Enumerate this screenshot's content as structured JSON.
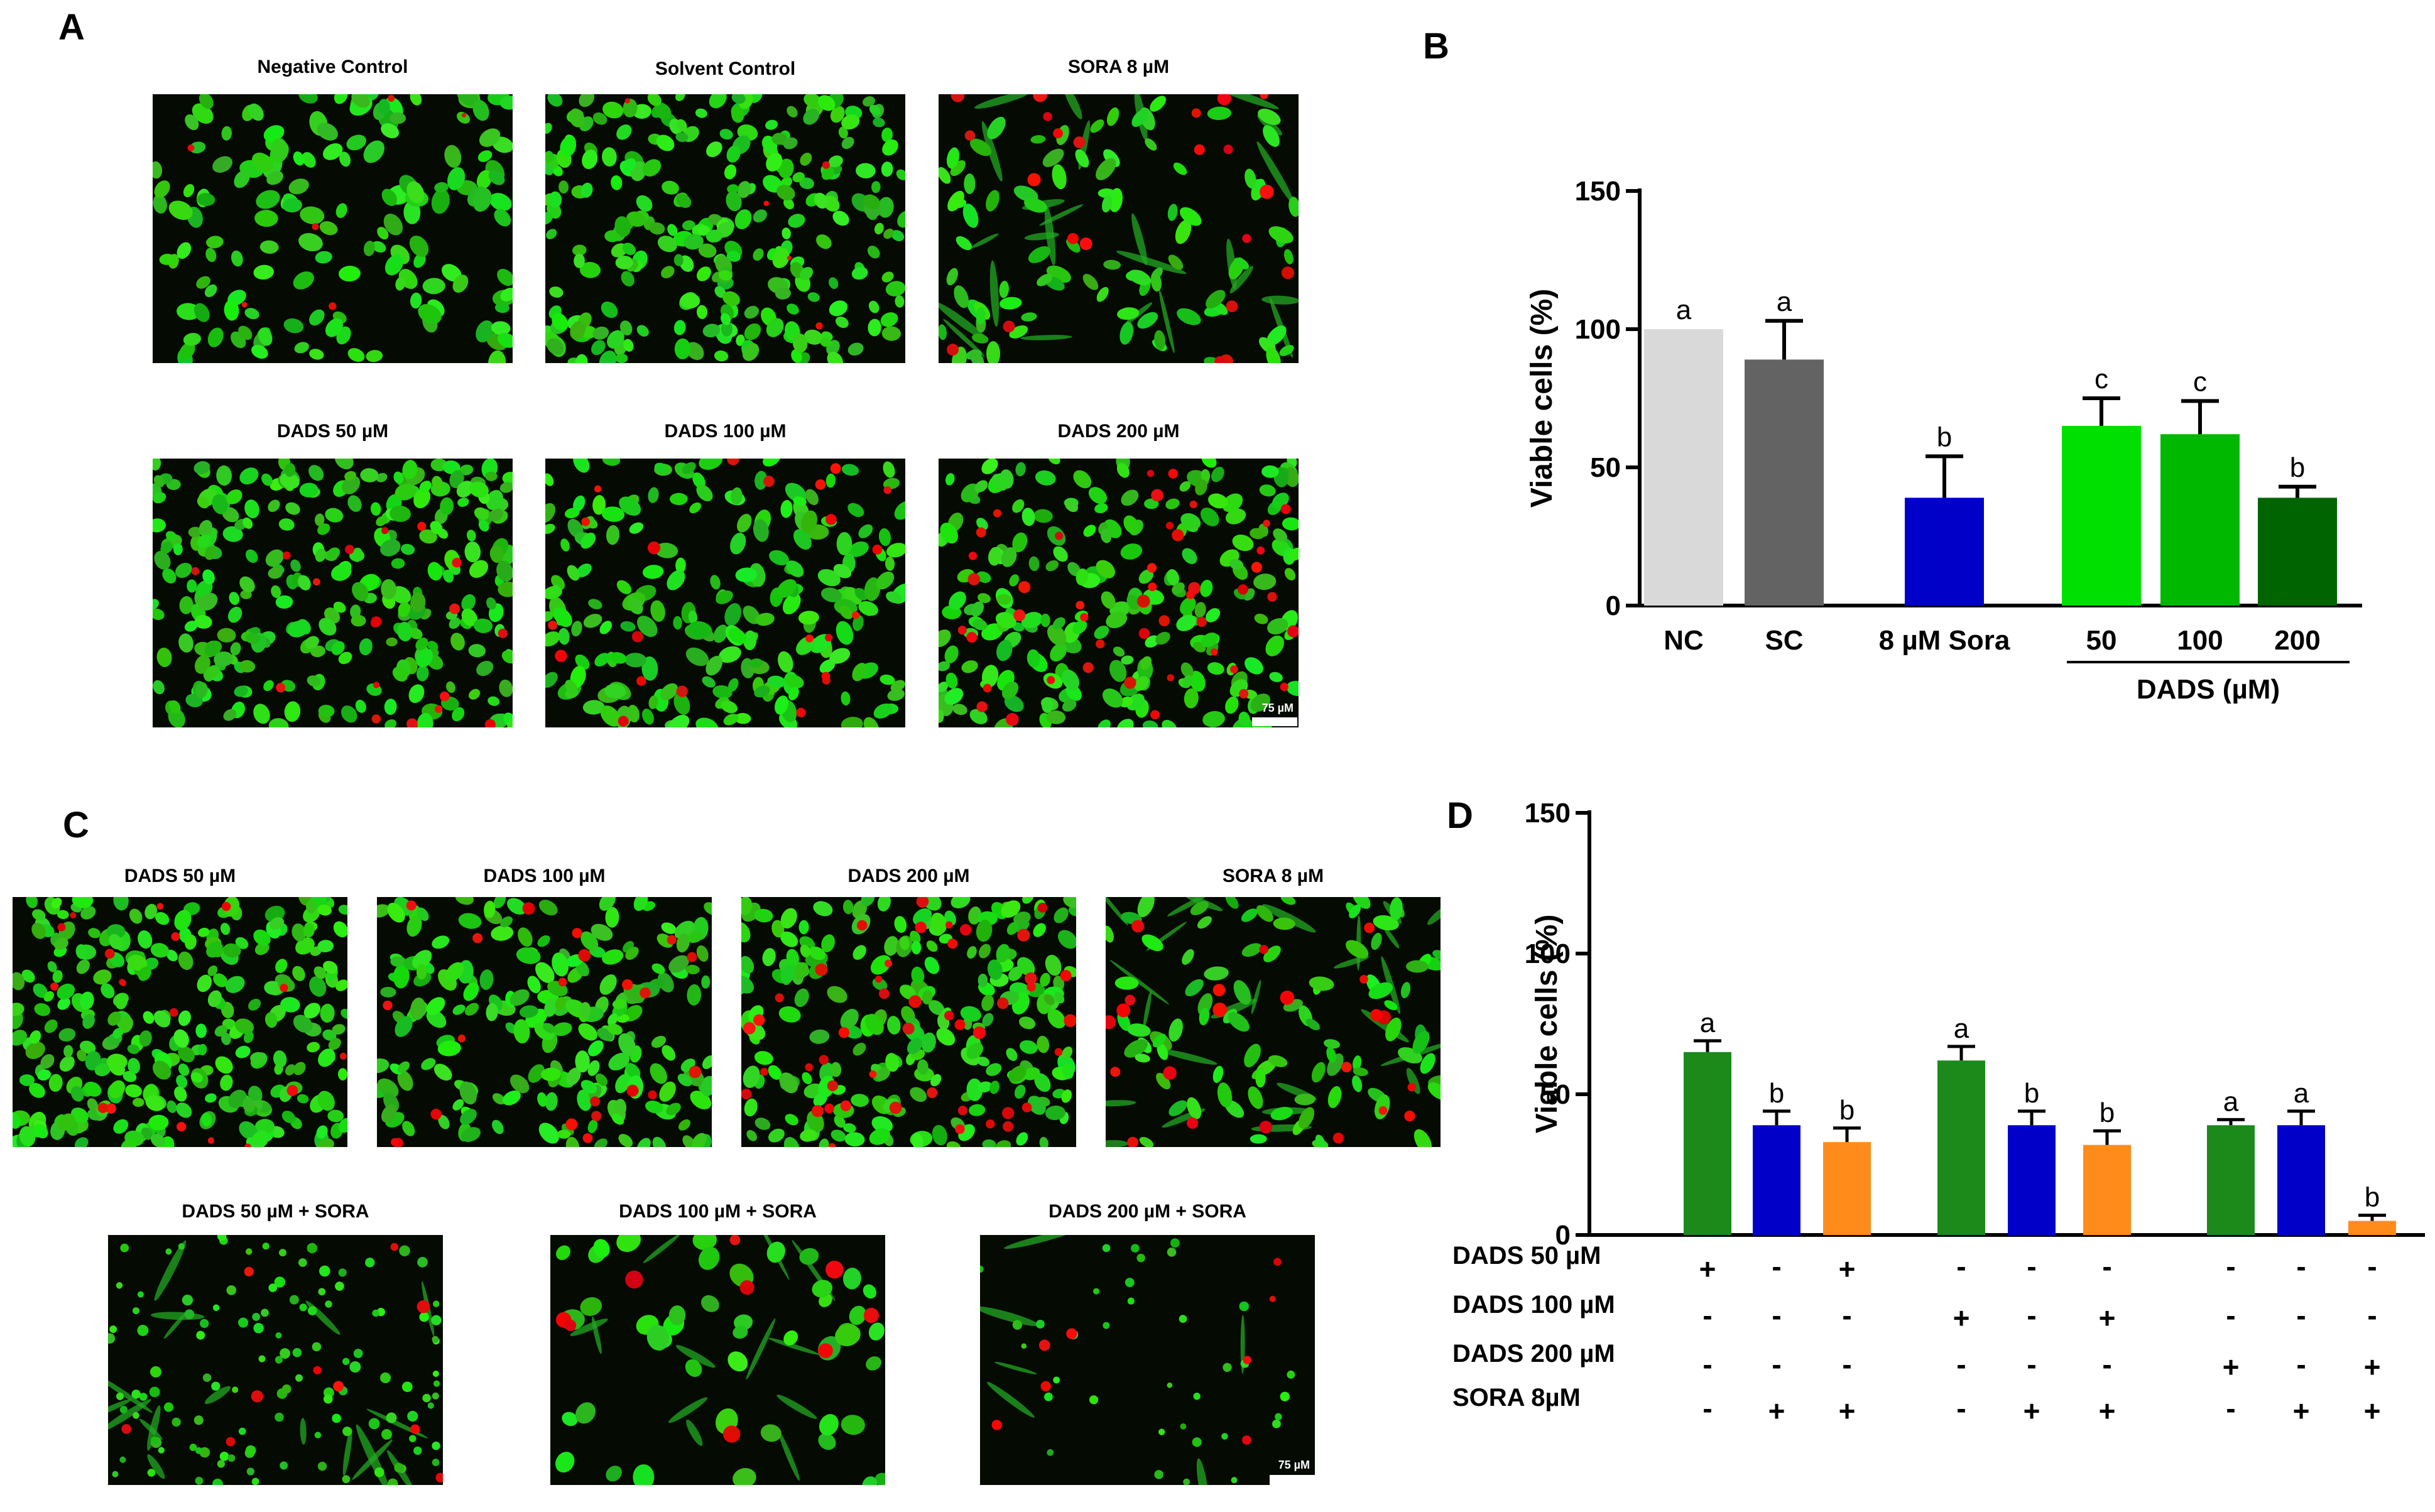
{
  "panels": {
    "A": {
      "letter": "A",
      "titles": [
        "Negative Control",
        "Solvent Control",
        "SORA 8 µM",
        "DADS 50 µM",
        "DADS 100 µM",
        "DADS 200 µM"
      ],
      "scale_label": "75 µM"
    },
    "B": {
      "letter": "B"
    },
    "C": {
      "letter": "C",
      "titles": [
        "DADS 50 µM",
        "DADS 100 µM",
        "DADS 200 µM",
        "SORA 8 µM",
        "DADS 50 µM + SORA",
        "DADS 100 µM + SORA",
        "DADS 200 µM + SORA"
      ],
      "scale_label": "75 µM"
    },
    "D": {
      "letter": "D"
    }
  },
  "chart_data": [
    {
      "type": "bar",
      "panel": "B",
      "ylabel": "Viable cells (%)",
      "ylim": [
        0,
        150
      ],
      "yticks": [
        0,
        50,
        100,
        150
      ],
      "categories": [
        "NC",
        "SC",
        "8 µM Sora",
        "50",
        "100",
        "200"
      ],
      "group_label": "DADS (µM)",
      "values": [
        100,
        89,
        39,
        65,
        62,
        39
      ],
      "errors": [
        0,
        14,
        15,
        10,
        12,
        4
      ],
      "letters": [
        "a",
        "a",
        "b",
        "c",
        "c",
        "b"
      ],
      "colors": [
        "#d9d9d9",
        "#636363",
        "#0000c8",
        "#00e000",
        "#00b800",
        "#006400"
      ]
    },
    {
      "type": "bar",
      "panel": "D",
      "ylabel": "Viable cells (%)",
      "ylim": [
        0,
        150
      ],
      "yticks": [
        0,
        50,
        100,
        150
      ],
      "values": [
        65,
        39,
        33,
        62,
        39,
        32,
        39,
        39,
        5
      ],
      "errors": [
        4,
        5,
        5,
        5,
        5,
        5,
        2,
        5,
        2
      ],
      "letters": [
        "a",
        "b",
        "b",
        "a",
        "b",
        "b",
        "a",
        "a",
        "b"
      ],
      "colors": [
        "#1b8a1b",
        "#0000c8",
        "#ff8c1a",
        "#1b8a1b",
        "#0000c8",
        "#ff8c1a",
        "#1b8a1b",
        "#0000c8",
        "#ff8c1a"
      ],
      "treatment_rows": [
        {
          "label": "DADS 50 µM",
          "signs": [
            "+",
            "-",
            "+",
            "-",
            "-",
            "-",
            "-",
            "-",
            "-"
          ]
        },
        {
          "label": "DADS 100 µM",
          "signs": [
            "-",
            "-",
            "-",
            "+",
            "-",
            "+",
            "-",
            "-",
            "-"
          ]
        },
        {
          "label": "DADS 200 µM",
          "signs": [
            "-",
            "-",
            "-",
            "-",
            "-",
            "-",
            "+",
            "-",
            "+"
          ]
        },
        {
          "label": "SORA 8µM",
          "signs": [
            "-",
            "+",
            "+",
            "-",
            "+",
            "+",
            "-",
            "+",
            "+"
          ]
        }
      ]
    }
  ]
}
